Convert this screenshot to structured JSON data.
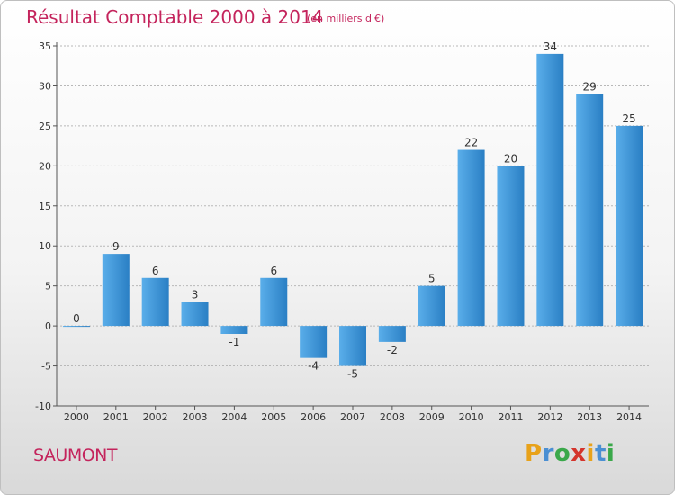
{
  "header": {
    "title": "Résultat Comptable 2000 à 2014",
    "subtitle": "(en milliers d'€)"
  },
  "footer": {
    "commune": "SAUMONT",
    "logo": {
      "letters": [
        "P",
        "r",
        "o",
        "x",
        "i",
        "t",
        "i"
      ],
      "colors": [
        "#e8a21a",
        "#4a8fd3",
        "#3aa84a",
        "#d4342c",
        "#e8a21a",
        "#4a8fd3",
        "#3aa84a"
      ]
    }
  },
  "colors": {
    "title": "#c4245c",
    "bar_light": "#5aaeea",
    "bar_dark": "#2a7fc4",
    "axis": "#555555",
    "grid": "#b8b8b8"
  },
  "chart_data": {
    "type": "bar",
    "categories": [
      "2000",
      "2001",
      "2002",
      "2003",
      "2004",
      "2005",
      "2006",
      "2007",
      "2008",
      "2009",
      "2010",
      "2011",
      "2012",
      "2013",
      "2014"
    ],
    "values": [
      0,
      9,
      6,
      3,
      -1,
      6,
      -4,
      -5,
      -2,
      5,
      22,
      20,
      34,
      29,
      25
    ],
    "ylim": [
      -10,
      35
    ],
    "yticks": [
      -10,
      -5,
      0,
      5,
      10,
      15,
      20,
      25,
      30,
      35
    ],
    "grid": true,
    "title": "Résultat Comptable 2000 à 2014",
    "xlabel": "",
    "ylabel": ""
  }
}
